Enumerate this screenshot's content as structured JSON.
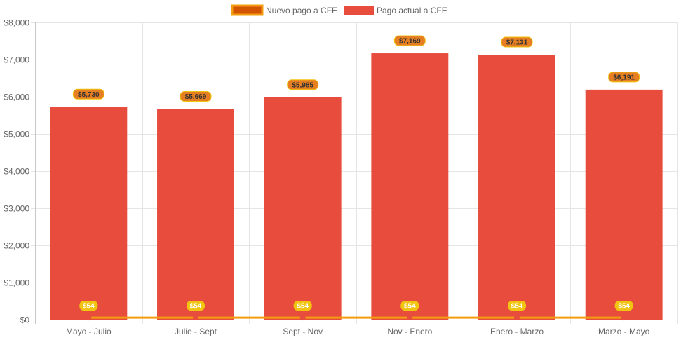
{
  "chart_data": {
    "type": "bar",
    "categories": [
      "Mayo - Julio",
      "Julio - Sept",
      "Sept - Nov",
      "Nov - Enero",
      "Enero - Marzo",
      "Marzo - Mayo"
    ],
    "series": [
      {
        "name": "Nuevo pago a CFE",
        "type": "line",
        "values": [
          54,
          54,
          54,
          54,
          54,
          54
        ],
        "data_labels": [
          "$54",
          "$54",
          "$54",
          "$54",
          "$54",
          "$54"
        ],
        "color": "#F39C12",
        "fill_color": "#D35400",
        "point_color": "#E74C3C",
        "label_bg": "#F1C40F",
        "label_text_color": "#ffffff"
      },
      {
        "name": "Pago actual a CFE",
        "type": "bar",
        "values": [
          5730,
          5669,
          5985,
          7169,
          7131,
          6191
        ],
        "data_labels": [
          "$5,730",
          "$5,669",
          "$5,985",
          "$7,169",
          "$7,131",
          "$6,191"
        ],
        "color": "#E74C3C",
        "label_bg": "#E67E22",
        "label_border": "#F1C40F",
        "label_text_color": "#333333"
      }
    ],
    "ylim": [
      0,
      8000
    ],
    "y_ticks": [
      "$0",
      "$1,000",
      "$2,000",
      "$3,000",
      "$4,000",
      "$5,000",
      "$6,000",
      "$7,000",
      "$8,000"
    ],
    "grid": true,
    "legend_position": "top-center",
    "title": "",
    "xlabel": "",
    "ylabel": ""
  },
  "legend": {
    "line_label": "Nuevo pago a CFE",
    "bar_label": "Pago actual a CFE"
  }
}
